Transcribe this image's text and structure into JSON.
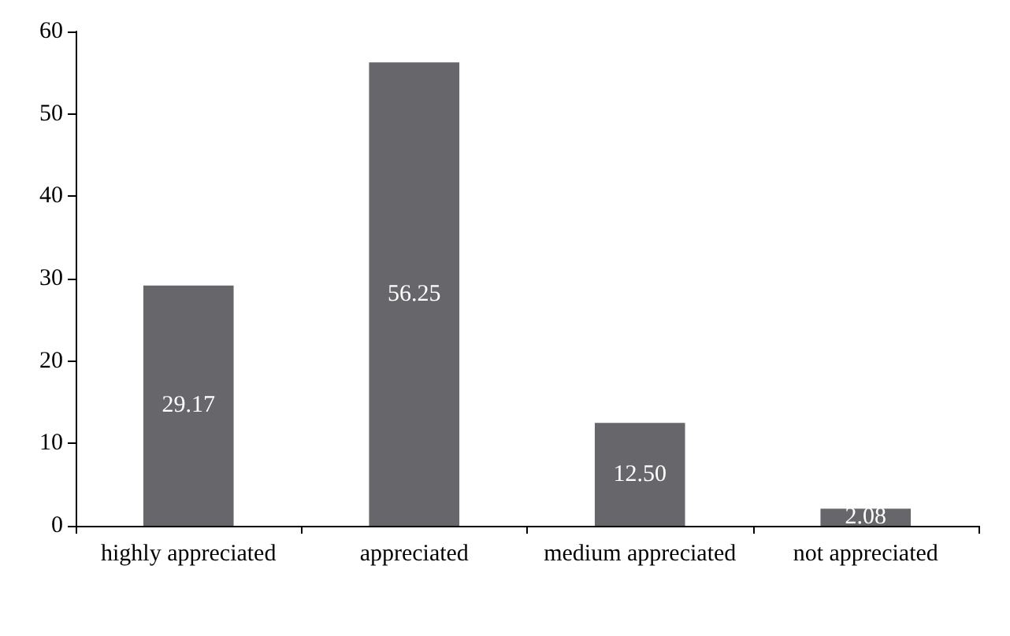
{
  "chart_data": {
    "type": "bar",
    "categories": [
      "highly appreciated",
      "appreciated",
      "medium appreciated",
      "not appreciated"
    ],
    "values": [
      29.17,
      56.25,
      12.5,
      2.08
    ],
    "value_labels": [
      "29.17",
      "56.25",
      "12.50",
      "2.08"
    ],
    "color": "#67676b",
    "ylim": [
      0,
      60
    ],
    "yticks": [
      0,
      10,
      20,
      30,
      40,
      50,
      60
    ],
    "grid": false
  }
}
